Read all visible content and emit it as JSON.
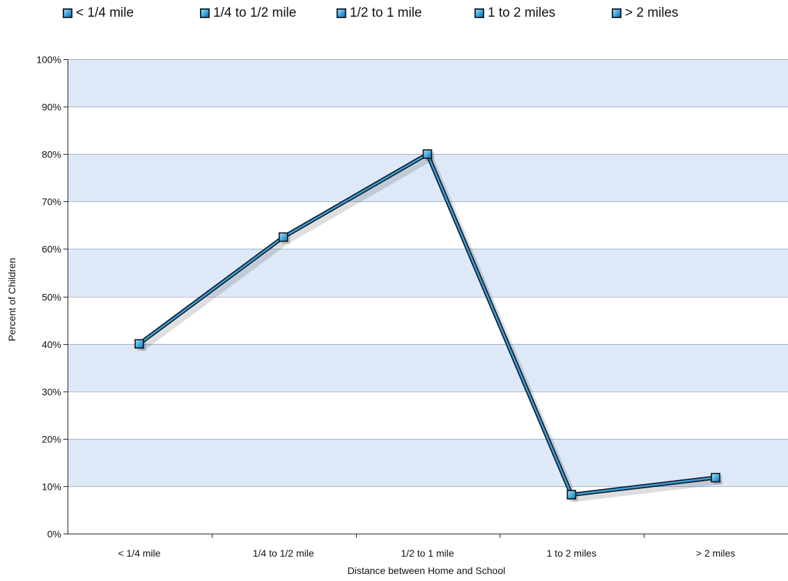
{
  "legend": [
    {
      "label": "< 1/4 mile"
    },
    {
      "label": "1/4 to 1/2 mile"
    },
    {
      "label": "1/2 to 1 mile"
    },
    {
      "label": "1 to 2 miles"
    },
    {
      "label": "> 2 miles"
    }
  ],
  "colors": {
    "band": "#dde9f7",
    "gridline": "#a9b4c4",
    "line_fill": "#3f9fd4",
    "line_edge": "#102030",
    "marker": "#45aee6"
  },
  "chart_data": {
    "type": "line",
    "categories": [
      "< 1/4 mile",
      "1/4 to 1/2 mile",
      "1/2 to 1 mile",
      "1 to 2 miles",
      "> 2 miles"
    ],
    "series": [
      {
        "values": [
          40,
          62.5,
          80,
          8.2,
          11.8
        ]
      }
    ],
    "xlabel": "Distance between Home and School",
    "ylabel": "Percent of Children",
    "ylim": [
      0,
      100
    ],
    "yticks": [
      0,
      10,
      20,
      30,
      40,
      50,
      60,
      70,
      80,
      90,
      100
    ],
    "ytick_format": "%",
    "grid": true,
    "legend_position": "top"
  }
}
